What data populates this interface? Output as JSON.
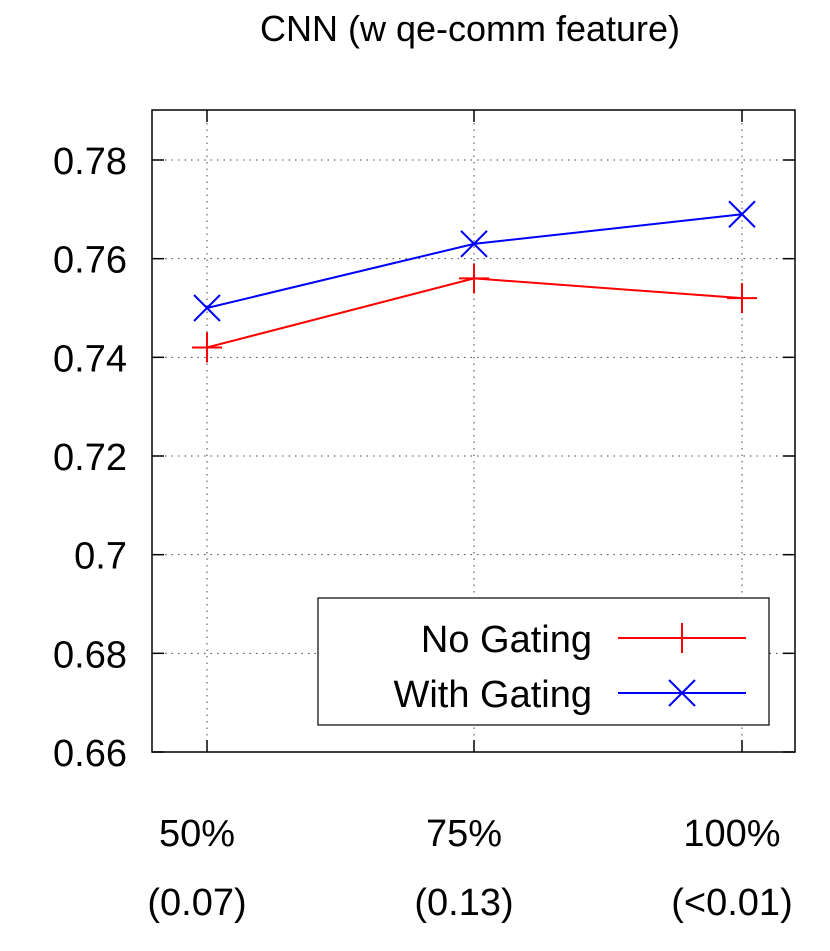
{
  "chart_data": {
    "type": "line",
    "title": "CNN (w qe-comm feature)",
    "xlabel": "",
    "ylabel": "",
    "categories": [
      "50%\n(0.07)",
      "75%\n(0.13)",
      "100%\n(<0.01)"
    ],
    "category_lines": [
      [
        "50%",
        "(0.07)"
      ],
      [
        "75%",
        "(0.13)"
      ],
      [
        "100%",
        "(<0.01)"
      ]
    ],
    "ylim": [
      0.66,
      0.79
    ],
    "yticks": [
      0.66,
      0.68,
      0.7,
      0.72,
      0.74,
      0.76,
      0.78
    ],
    "ytick_labels": [
      "0.66",
      "0.68",
      "0.7",
      "0.72",
      "0.74",
      "0.76",
      "0.78"
    ],
    "grid": true,
    "legend_position": "bottom-right",
    "series": [
      {
        "name": "No Gating",
        "values": [
          0.742,
          0.756,
          0.752
        ],
        "color": "#ff0000",
        "marker": "plus"
      },
      {
        "name": "With Gating",
        "values": [
          0.75,
          0.763,
          0.769
        ],
        "color": "#0000ff",
        "marker": "x"
      }
    ]
  }
}
